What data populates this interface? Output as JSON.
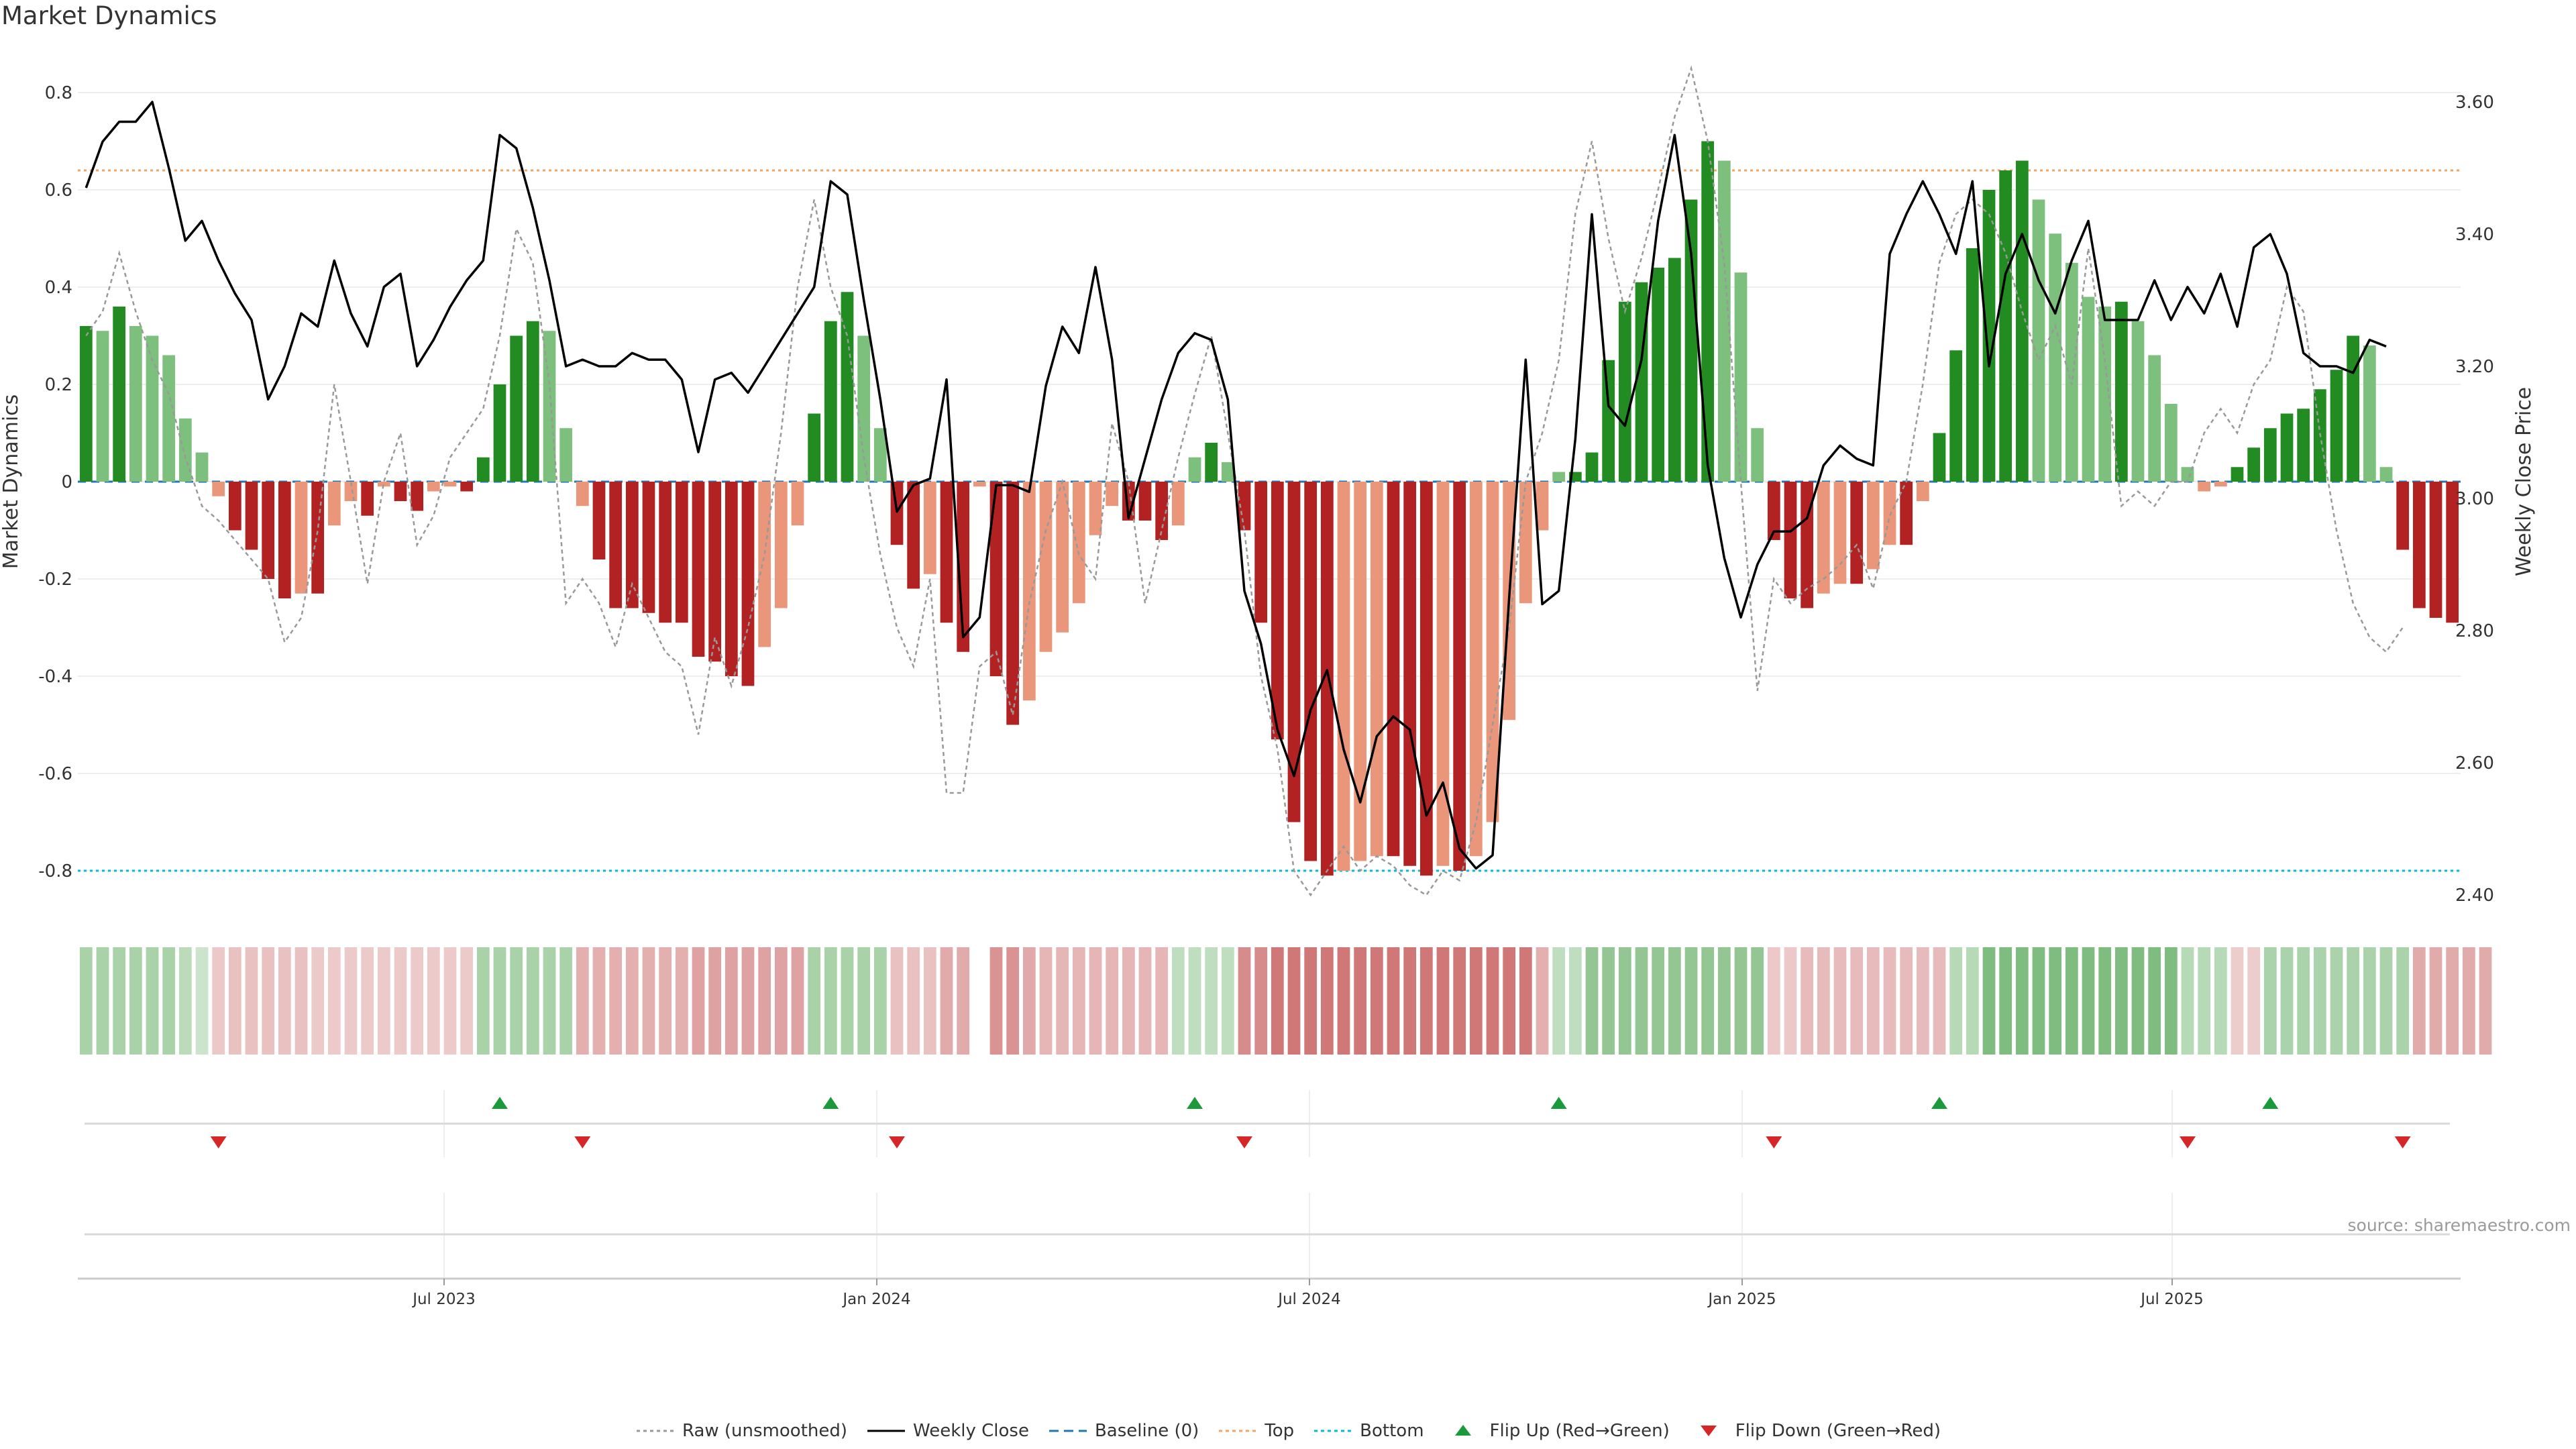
{
  "page": {
    "title": "Market Dynamics",
    "source": "source: sharemaestro.com"
  },
  "chart_data": {
    "type": "bar",
    "title": "Market Dynamics",
    "ylabel": "Market Dynamics",
    "y2label": "Weekly Close Price",
    "ylim": [
      -0.88,
      0.88
    ],
    "y2lim": [
      2.38,
      3.66
    ],
    "yticks": [
      "0.8",
      "0.6",
      "0.4",
      "0.2",
      "0",
      "-0.2",
      "-0.4",
      "-0.6",
      "-0.8"
    ],
    "y2ticks": [
      "3.60",
      "3.40",
      "3.20",
      "3.00",
      "2.80",
      "2.60",
      "2.40"
    ],
    "xticks": [
      "Jul 2023",
      "Jan 2024",
      "Jul 2024",
      "Jan 2025",
      "Jul 2025"
    ],
    "top_line": 0.64,
    "bottom_line": -0.8,
    "baseline": 0,
    "grid": true,
    "legend_position": "bottom-center",
    "colors": {
      "dark_green": "#228b22",
      "light_green": "#7dbf7d",
      "dark_red": "#b22222",
      "light_red": "#e9967a",
      "close_line": "#000000",
      "raw_line": "#999999",
      "baseline": "#1f77b4",
      "top": "#f4a460",
      "bottom": "#00bcd4",
      "flip_up": "#1a9a3a",
      "flip_down": "#d62728"
    },
    "dynamics": [
      0.32,
      0.31,
      0.36,
      0.32,
      0.3,
      0.26,
      0.13,
      0.06,
      -0.03,
      -0.1,
      -0.14,
      -0.2,
      -0.24,
      -0.23,
      -0.23,
      -0.09,
      -0.04,
      -0.07,
      -0.01,
      -0.04,
      -0.06,
      -0.02,
      -0.01,
      -0.02,
      0.05,
      0.2,
      0.3,
      0.33,
      0.31,
      0.11,
      -0.05,
      -0.16,
      -0.26,
      -0.26,
      -0.27,
      -0.29,
      -0.29,
      -0.36,
      -0.37,
      -0.4,
      -0.42,
      -0.34,
      -0.26,
      -0.09,
      0.14,
      0.33,
      0.39,
      0.3,
      0.11,
      -0.13,
      -0.22,
      -0.19,
      -0.29,
      -0.35,
      -0.01,
      -0.4,
      -0.5,
      -0.45,
      -0.35,
      -0.31,
      -0.25,
      -0.11,
      -0.05,
      -0.08,
      -0.08,
      -0.12,
      -0.09,
      0.05,
      0.08,
      0.04,
      -0.1,
      -0.29,
      -0.53,
      -0.7,
      -0.78,
      -0.81,
      -0.8,
      -0.78,
      -0.77,
      -0.77,
      -0.79,
      -0.81,
      -0.79,
      -0.8,
      -0.77,
      -0.7,
      -0.49,
      -0.25,
      -0.1,
      0.02,
      0.02,
      0.06,
      0.25,
      0.37,
      0.41,
      0.44,
      0.46,
      0.58,
      0.7,
      0.66,
      0.43,
      0.11,
      -0.12,
      -0.24,
      -0.26,
      -0.23,
      -0.21,
      -0.21,
      -0.18,
      -0.13,
      -0.13,
      -0.04,
      0.1,
      0.27,
      0.48,
      0.6,
      0.64,
      0.66,
      0.58,
      0.51,
      0.45,
      0.38,
      0.36,
      0.37,
      0.33,
      0.26,
      0.16,
      0.03,
      -0.02,
      -0.01,
      0.03,
      0.07,
      0.11,
      0.14,
      0.15,
      0.19,
      0.23,
      0.3,
      0.28,
      0.03,
      -0.14,
      -0.26,
      -0.28,
      -0.29
    ],
    "raw": [
      0.3,
      0.35,
      0.47,
      0.35,
      0.25,
      0.18,
      0.05,
      -0.05,
      -0.08,
      -0.12,
      -0.16,
      -0.2,
      -0.33,
      -0.28,
      -0.1,
      0.2,
      0.0,
      -0.21,
      0.0,
      0.1,
      -0.13,
      -0.07,
      0.05,
      0.1,
      0.15,
      0.3,
      0.52,
      0.45,
      0.2,
      -0.25,
      -0.2,
      -0.25,
      -0.34,
      -0.21,
      -0.28,
      -0.35,
      -0.38,
      -0.52,
      -0.32,
      -0.42,
      -0.3,
      -0.15,
      0.1,
      0.4,
      0.58,
      0.4,
      0.3,
      0.05,
      -0.15,
      -0.3,
      -0.38,
      -0.2,
      -0.64,
      -0.64,
      -0.38,
      -0.35,
      -0.48,
      -0.25,
      -0.1,
      0.0,
      -0.15,
      -0.2,
      0.12,
      0.0,
      -0.25,
      -0.1,
      0.05,
      0.18,
      0.3,
      0.1,
      -0.1,
      -0.4,
      -0.55,
      -0.8,
      -0.85,
      -0.8,
      -0.75,
      -0.8,
      -0.77,
      -0.79,
      -0.83,
      -0.85,
      -0.8,
      -0.82,
      -0.7,
      -0.5,
      -0.3,
      0.0,
      0.1,
      0.25,
      0.55,
      0.7,
      0.5,
      0.35,
      0.46,
      0.6,
      0.75,
      0.85,
      0.7,
      0.45,
      0.0,
      -0.43,
      -0.2,
      -0.25,
      -0.22,
      -0.2,
      -0.17,
      -0.13,
      -0.22,
      -0.07,
      0.0,
      0.2,
      0.45,
      0.55,
      0.58,
      0.55,
      0.47,
      0.35,
      0.25,
      0.32,
      0.2,
      0.48,
      0.25,
      -0.05,
      -0.02,
      -0.05,
      0.0,
      0.0,
      0.1,
      0.15,
      0.1,
      0.2,
      0.25,
      0.4,
      0.35,
      0.1,
      -0.1,
      -0.25,
      -0.32,
      -0.35,
      -0.3
    ],
    "close": [
      3.47,
      3.54,
      3.57,
      3.57,
      3.6,
      3.5,
      3.39,
      3.42,
      3.36,
      3.31,
      3.27,
      3.15,
      3.2,
      3.28,
      3.26,
      3.36,
      3.28,
      3.23,
      3.32,
      3.34,
      3.2,
      3.24,
      3.29,
      3.33,
      3.36,
      3.55,
      3.53,
      3.44,
      3.33,
      3.2,
      3.21,
      3.2,
      3.2,
      3.22,
      3.21,
      3.21,
      3.18,
      3.07,
      3.18,
      3.19,
      3.16,
      3.2,
      3.24,
      3.28,
      3.32,
      3.48,
      3.46,
      3.3,
      3.15,
      2.98,
      3.02,
      3.03,
      3.18,
      2.79,
      2.82,
      3.02,
      3.02,
      3.01,
      3.17,
      3.26,
      3.22,
      3.35,
      3.21,
      2.97,
      3.06,
      3.15,
      3.22,
      3.25,
      3.24,
      3.15,
      2.86,
      2.78,
      2.65,
      2.58,
      2.68,
      2.74,
      2.62,
      2.54,
      2.64,
      2.67,
      2.65,
      2.52,
      2.57,
      2.47,
      2.44,
      2.46,
      2.85,
      3.21,
      2.84,
      2.86,
      3.09,
      3.43,
      3.14,
      3.11,
      3.21,
      3.42,
      3.55,
      3.37,
      3.05,
      2.91,
      2.82,
      2.9,
      2.95,
      2.95,
      2.97,
      3.05,
      3.08,
      3.06,
      3.05,
      3.37,
      3.43,
      3.48,
      3.43,
      3.37,
      3.48,
      3.2,
      3.34,
      3.4,
      3.33,
      3.28,
      3.36,
      3.42,
      3.27,
      3.27,
      3.27,
      3.33,
      3.27,
      3.32,
      3.28,
      3.34,
      3.26,
      3.38,
      3.4,
      3.34,
      3.22,
      3.2,
      3.2,
      3.19,
      3.24,
      3.23
    ],
    "heat_strip": [
      0.4,
      0.4,
      0.4,
      0.4,
      0.4,
      0.4,
      0.28,
      0.15,
      -0.18,
      -0.22,
      -0.22,
      -0.22,
      -0.22,
      -0.22,
      -0.16,
      -0.16,
      -0.16,
      -0.16,
      -0.16,
      -0.16,
      -0.16,
      -0.16,
      -0.16,
      -0.16,
      0.4,
      0.4,
      0.4,
      0.4,
      0.4,
      0.4,
      -0.36,
      -0.36,
      -0.36,
      -0.36,
      -0.36,
      -0.36,
      -0.36,
      -0.44,
      -0.44,
      -0.44,
      -0.44,
      -0.44,
      -0.44,
      -0.44,
      0.4,
      0.4,
      0.4,
      0.4,
      0.4,
      -0.22,
      -0.22,
      -0.22,
      -0.38,
      -0.38,
      null,
      -0.55,
      -0.55,
      -0.4,
      -0.3,
      -0.3,
      -0.3,
      -0.3,
      -0.3,
      -0.3,
      -0.3,
      -0.3,
      0.25,
      0.25,
      0.25,
      0.25,
      -0.6,
      -0.6,
      -0.75,
      -0.75,
      -0.75,
      -0.75,
      -0.75,
      -0.75,
      -0.75,
      -0.75,
      -0.75,
      -0.75,
      -0.75,
      -0.75,
      -0.75,
      -0.75,
      -0.75,
      -0.75,
      -0.35,
      0.25,
      0.25,
      0.55,
      0.55,
      0.55,
      0.55,
      0.55,
      0.55,
      0.55,
      0.55,
      0.55,
      0.55,
      0.55,
      -0.18,
      -0.18,
      -0.28,
      -0.28,
      -0.28,
      -0.28,
      -0.28,
      -0.28,
      -0.28,
      -0.28,
      -0.28,
      0.3,
      0.3,
      0.7,
      0.7,
      0.7,
      0.7,
      0.7,
      0.7,
      0.7,
      0.7,
      0.7,
      0.7,
      0.7,
      0.7,
      0.3,
      0.3,
      0.3,
      -0.15,
      -0.15,
      0.38,
      0.38,
      0.38,
      0.38,
      0.38,
      0.38,
      0.38,
      0.38,
      0.38,
      -0.38,
      -0.38,
      -0.38,
      -0.38,
      -0.38
    ],
    "flip_up": [
      25,
      45,
      67,
      89,
      112,
      132
    ],
    "flip_down": [
      8,
      30,
      49,
      70,
      102,
      127,
      140
    ]
  },
  "legend": [
    {
      "label": "Raw (unsmoothed)",
      "kind": "dotted",
      "color": "#999999"
    },
    {
      "label": "Weekly Close",
      "kind": "solid",
      "color": "#000000"
    },
    {
      "label": "Baseline (0)",
      "kind": "dashed",
      "color": "#1f77b4"
    },
    {
      "label": "Top",
      "kind": "dotted",
      "color": "#f4a460"
    },
    {
      "label": "Bottom",
      "kind": "dotted",
      "color": "#00bcd4"
    },
    {
      "label": "Flip Up (Red→Green)",
      "kind": "tri-up",
      "color": "#1a9a3a"
    },
    {
      "label": "Flip Down (Green→Red)",
      "kind": "tri-down",
      "color": "#d62728"
    }
  ]
}
